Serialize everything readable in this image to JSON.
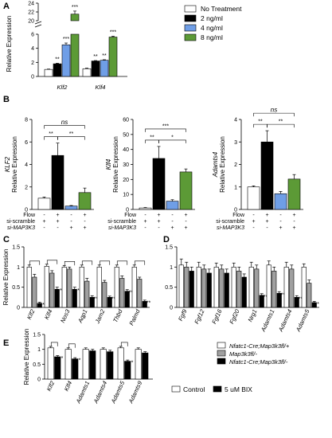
{
  "chart_data": [
    {
      "panel": "A",
      "type": "bar",
      "ylabel": "Relative Expression",
      "ylim": [
        0,
        24
      ],
      "axis_break": true,
      "yticks": [
        "0",
        "2",
        "4",
        "6",
        "20",
        "22",
        "24"
      ],
      "categories": [
        "Klf2",
        "Klf4"
      ],
      "series": [
        {
          "name": "No Treatment",
          "color": "#ffffff",
          "values": [
            1.0,
            1.1
          ],
          "err": [
            0.05,
            0.08
          ]
        },
        {
          "name": "2 ng/ml",
          "color": "#000000",
          "values": [
            1.8,
            2.2
          ],
          "err": [
            0.08,
            0.06
          ]
        },
        {
          "name": "4 ng/ml",
          "color": "#6f9ee6",
          "values": [
            4.5,
            2.3
          ],
          "err": [
            0.25,
            0.08
          ]
        },
        {
          "name": "8 ng/ml",
          "color": "#5c9a36",
          "values": [
            21.5,
            5.6
          ],
          "err": [
            0.7,
            0.12
          ]
        }
      ],
      "annotations": [
        {
          "category": "Klf2",
          "series": "2 ng/ml",
          "text": "**"
        },
        {
          "category": "Klf2",
          "series": "4 ng/ml",
          "text": "***"
        },
        {
          "category": "Klf2",
          "series": "8 ng/ml",
          "text": "***"
        },
        {
          "category": "Klf4",
          "series": "2 ng/ml",
          "text": "**"
        },
        {
          "category": "Klf4",
          "series": "4 ng/ml",
          "text": "**"
        },
        {
          "category": "Klf4",
          "series": "8 ng/ml",
          "text": "***"
        }
      ]
    },
    {
      "panel": "B",
      "type": "bar",
      "condition_rows": [
        {
          "label": "Flow",
          "values": [
            "-",
            "+",
            "-",
            "+"
          ]
        },
        {
          "label": "si-scramble",
          "values": [
            "+",
            "+",
            "-",
            "-"
          ]
        },
        {
          "label": "si-MAP3K3",
          "values": [
            "-",
            "-",
            "+",
            "+"
          ]
        }
      ],
      "subplots": [
        {
          "gene": "KLF2",
          "ylabel": "Relative Expression",
          "ylim": [
            0,
            8
          ],
          "yticks": [
            "0",
            "2",
            "4",
            "6",
            "8"
          ],
          "values": [
            1.0,
            4.8,
            0.3,
            1.5
          ],
          "err": [
            0.1,
            1.1,
            0.05,
            0.4
          ],
          "colors": [
            "#ffffff",
            "#000000",
            "#6f9ee6",
            "#5c9a36"
          ],
          "brackets": [
            {
              "from": 0,
              "to": 1,
              "text": "**"
            },
            {
              "from": 1,
              "to": 3,
              "text": "**"
            },
            {
              "from": 0,
              "to": 3,
              "text": "ns"
            }
          ]
        },
        {
          "gene": "Klf4",
          "ylabel": "Relative Expression",
          "ylim": [
            0,
            60
          ],
          "yticks": [
            "0",
            "10",
            "20",
            "30",
            "40",
            "50",
            "60"
          ],
          "values": [
            1.0,
            34,
            5.5,
            25
          ],
          "err": [
            0.3,
            8,
            1.0,
            2.0
          ],
          "colors": [
            "#ffffff",
            "#000000",
            "#6f9ee6",
            "#5c9a36"
          ],
          "brackets": [
            {
              "from": 0,
              "to": 1,
              "text": "**"
            },
            {
              "from": 1,
              "to": 3,
              "text": "*"
            },
            {
              "from": 0,
              "to": 3,
              "text": "***"
            }
          ]
        },
        {
          "gene": "Adamts4",
          "ylabel": "Relative Expression",
          "ylim": [
            0,
            4
          ],
          "yticks": [
            "0",
            "1",
            "2",
            "3",
            "4"
          ],
          "values": [
            1.0,
            3.0,
            0.7,
            1.35
          ],
          "err": [
            0.05,
            0.5,
            0.1,
            0.2
          ],
          "colors": [
            "#ffffff",
            "#000000",
            "#6f9ee6",
            "#5c9a36"
          ],
          "brackets": [
            {
              "from": 0,
              "to": 1,
              "text": "**"
            },
            {
              "from": 1,
              "to": 3,
              "text": "**"
            },
            {
              "from": 0,
              "to": 3,
              "text": "ns"
            }
          ]
        }
      ]
    },
    {
      "panel": "C",
      "type": "bar",
      "ylabel": "Relative Expression",
      "ylim": [
        0,
        1.5
      ],
      "yticks": [
        "0",
        "0.5",
        "1",
        "1.5"
      ],
      "categories": [
        "Klf2",
        "Klf4",
        "Nos3",
        "Aqp1",
        "Jam2",
        "Thbd",
        "Palmd"
      ],
      "series": [
        {
          "name": "Nfatc1-Cre;Map3k3 fl/+",
          "color": "#ffffff",
          "values": [
            1.0,
            1.02,
            1.0,
            1.0,
            1.0,
            1.0,
            1.0
          ],
          "err": [
            0.05,
            0.05,
            0.04,
            0.05,
            0.05,
            0.05,
            0.05
          ]
        },
        {
          "name": "Map3k3 fl/-",
          "color": "#a0a0a0",
          "values": [
            0.75,
            0.85,
            0.95,
            0.65,
            0.62,
            0.72,
            0.7
          ],
          "err": [
            0.07,
            0.06,
            0.05,
            0.07,
            0.05,
            0.06,
            0.05
          ]
        },
        {
          "name": "Nfatc1-Cre;Map3k3 fl/-",
          "color": "#000000",
          "values": [
            0.1,
            0.45,
            0.45,
            0.25,
            0.25,
            0.4,
            0.15
          ],
          "err": [
            0.03,
            0.05,
            0.05,
            0.04,
            0.03,
            0.04,
            0.03
          ]
        }
      ],
      "annotations": [
        "***",
        "*",
        "*",
        "**",
        "**",
        "**",
        "**"
      ]
    },
    {
      "panel": "D",
      "type": "bar",
      "ylim": [
        0,
        1.5
      ],
      "yticks": [
        "0",
        "0.5",
        "1",
        "1.5"
      ],
      "categories": [
        "Fgf9",
        "Fgf12",
        "Fgf16",
        "Fgf20",
        "Nrg1",
        "Adamts1",
        "Adamts4",
        "Adamts5"
      ],
      "series": [
        {
          "name": "Nfatc1-Cre;Map3k3 fl/+",
          "color": "#ffffff",
          "values": [
            1.05,
            1.0,
            1.0,
            1.0,
            1.0,
            1.05,
            1.0,
            1.0
          ],
          "err": [
            0.15,
            0.12,
            0.1,
            0.1,
            0.12,
            0.1,
            0.12,
            0.08
          ]
        },
        {
          "name": "Map3k3 fl/-",
          "color": "#a0a0a0",
          "values": [
            1.0,
            0.95,
            0.95,
            0.9,
            0.95,
            0.9,
            0.95,
            0.6
          ],
          "err": [
            0.12,
            0.1,
            0.1,
            0.1,
            0.1,
            0.1,
            0.1,
            0.08
          ]
        },
        {
          "name": "Nfatc1-Cre;Map3k3 fl/-",
          "color": "#000000",
          "values": [
            0.9,
            0.85,
            0.85,
            0.75,
            0.3,
            0.35,
            0.25,
            0.12
          ],
          "err": [
            0.1,
            0.1,
            0.1,
            0.08,
            0.04,
            0.04,
            0.04,
            0.03
          ]
        }
      ],
      "annotations": [
        "",
        "",
        "",
        "",
        "**",
        "**",
        "**",
        "*"
      ],
      "legend": [
        "Nfatc1-Cre;Map3k3fl/+",
        "Map3k3fl/-",
        "Nfatc1-Cre;Map3k3fl/-"
      ]
    },
    {
      "panel": "E",
      "type": "bar",
      "ylabel": "Relative Expression",
      "ylim": [
        0,
        1.5
      ],
      "yticks": [
        "0",
        "0.5",
        "1",
        "1.5"
      ],
      "categories": [
        "Klf2",
        "Klf4",
        "Adamts1",
        "Adamts4",
        "Adamts5",
        "Adamts9"
      ],
      "series": [
        {
          "name": "Control",
          "color": "#ffffff",
          "values": [
            1.05,
            1.0,
            1.0,
            1.0,
            1.05,
            1.0
          ],
          "err": [
            0.05,
            0.05,
            0.05,
            0.05,
            0.05,
            0.05
          ]
        },
        {
          "name": "5 uM BIX",
          "color": "#000000",
          "values": [
            0.75,
            0.68,
            0.95,
            0.92,
            0.6,
            0.88
          ],
          "err": [
            0.04,
            0.04,
            0.05,
            0.05,
            0.04,
            0.04
          ]
        }
      ],
      "annotations": [
        "*",
        "*",
        "",
        "",
        "*",
        ""
      ],
      "legend": [
        "Control",
        "5 uM BIX"
      ]
    }
  ]
}
